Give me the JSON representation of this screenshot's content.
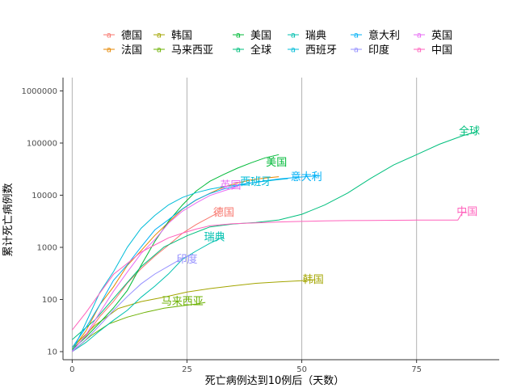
{
  "chart_data": {
    "type": "line",
    "title": "",
    "xlabel": "死亡病例达到10例后（天数）",
    "ylabel": "累计死亡病例数",
    "xlim": [
      -2,
      93
    ],
    "ylim": [
      7,
      1800000
    ],
    "yscale": "log",
    "xticks": [
      0,
      25,
      50,
      75
    ],
    "yticks": [
      10,
      100,
      1000,
      10000,
      100000,
      1000000
    ],
    "ytick_labels": [
      "10",
      "100",
      "1000",
      "10000",
      "100000",
      "1000000"
    ],
    "grid": "vertical-major",
    "legend_position": "top",
    "series": [
      {
        "name": "德国",
        "color": "#F8766D",
        "x": [
          0,
          3,
          6,
          9,
          12,
          15,
          18,
          21,
          24,
          27,
          30,
          32
        ],
        "y": [
          11,
          20,
          47,
          92,
          206,
          389,
          682,
          1107,
          1861,
          2736,
          3804,
          4700
        ]
      },
      {
        "name": "法国",
        "color": "#E58700",
        "x": [
          0,
          3,
          6,
          9,
          12,
          15,
          18,
          21,
          24,
          27,
          30,
          33,
          36,
          39,
          42,
          45
        ],
        "y": [
          11,
          25,
          79,
          175,
          450,
          860,
          1696,
          3024,
          5387,
          8078,
          10869,
          14393,
          17167,
          19718,
          21340,
          22614
        ]
      },
      {
        "name": "韩国",
        "color": "#A3A500",
        "x": [
          0,
          5,
          10,
          15,
          20,
          25,
          30,
          35,
          40,
          45,
          50,
          53
        ],
        "y": [
          12,
          32,
          67,
          91,
          111,
          139,
          162,
          183,
          204,
          217,
          230,
          240
        ]
      },
      {
        "name": "马来西亚",
        "color": "#6BB100",
        "x": [
          0,
          4,
          8,
          12,
          16,
          20,
          24,
          27,
          29
        ],
        "y": [
          10,
          20,
          34,
          46,
          57,
          68,
          76,
          82,
          88
        ]
      },
      {
        "name": "美国",
        "color": "#00BA38",
        "x": [
          0,
          3,
          6,
          9,
          12,
          15,
          18,
          21,
          24,
          27,
          30,
          33,
          36,
          39,
          42,
          45
        ],
        "y": [
          11,
          19,
          36,
          69,
          149,
          450,
          1300,
          3170,
          6500,
          12000,
          18500,
          25000,
          33000,
          42000,
          52000,
          60000
        ]
      },
      {
        "name": "全球",
        "color": "#00BF7D",
        "x": [
          0,
          5,
          10,
          15,
          20,
          25,
          30,
          35,
          40,
          45,
          50,
          55,
          60,
          65,
          70,
          75,
          80,
          85,
          88
        ],
        "y": [
          17,
          41,
          132,
          425,
          1018,
          1666,
          2464,
          2800,
          3000,
          3350,
          4300,
          6500,
          11000,
          21000,
          38000,
          60000,
          95000,
          138000,
          165000
        ]
      },
      {
        "name": "瑞典",
        "color": "#00C0AF",
        "x": [
          0,
          3,
          6,
          9,
          12,
          15,
          18,
          21,
          24,
          27,
          30,
          33
        ],
        "y": [
          10,
          15,
          25,
          40,
          62,
          110,
          180,
          310,
          590,
          850,
          1200,
          1600
        ]
      },
      {
        "name": "西班牙",
        "color": "#00BCD8",
        "x": [
          0,
          3,
          6,
          9,
          12,
          15,
          18,
          21,
          24,
          27,
          30,
          33,
          36,
          39,
          42,
          45,
          47
        ],
        "y": [
          10,
          36,
          136,
          342,
          1002,
          2311,
          4089,
          6528,
          9053,
          11198,
          13055,
          14555,
          15843,
          17209,
          18579,
          20002,
          20800
        ]
      },
      {
        "name": "意大利",
        "color": "#00B0F6",
        "x": [
          0,
          3,
          6,
          9,
          12,
          15,
          18,
          21,
          24,
          27,
          30,
          33,
          36,
          39,
          42,
          45,
          48,
          51,
          54
        ],
        "y": [
          12,
          29,
          79,
          233,
          463,
          1016,
          2158,
          3405,
          5476,
          8165,
          10779,
          13155,
          15362,
          17127,
          18849,
          20465,
          21645,
          22745,
          23600
        ]
      },
      {
        "name": "印度",
        "color": "#9590FF",
        "x": [
          0,
          3,
          6,
          9,
          12,
          15,
          18,
          21,
          24,
          26
        ],
        "y": [
          10,
          17,
          32,
          62,
          114,
          199,
          308,
          437,
          620,
          720
        ]
      },
      {
        "name": "英国",
        "color": "#E76BF3",
        "x": [
          0,
          3,
          6,
          9,
          12,
          15,
          18,
          21,
          24,
          27,
          30,
          33,
          36
        ],
        "y": [
          10,
          21,
          56,
          144,
          335,
          759,
          1408,
          2921,
          4934,
          7097,
          9875,
          12107,
          14576
        ]
      },
      {
        "name": "中国",
        "color": "#FF62BC",
        "x": [
          0,
          3,
          6,
          9,
          12,
          15,
          18,
          21,
          24,
          27,
          30,
          35,
          40,
          45,
          50,
          55,
          60,
          65,
          70,
          75,
          80,
          84,
          85,
          86
        ],
        "y": [
          26,
          56,
          132,
          304,
          492,
          811,
          1113,
          1523,
          1868,
          2237,
          2592,
          2838,
          2945,
          3062,
          3144,
          3226,
          3260,
          3281,
          3309,
          3326,
          3336,
          3339,
          4632,
          4635
        ]
      }
    ],
    "labels": [
      {
        "text": "德国",
        "series": 0,
        "x": 33,
        "y": 4800
      },
      {
        "text": "韩国",
        "series": 2,
        "x": 52.5,
        "y": 250
      },
      {
        "text": "马来西亚",
        "series": 3,
        "x": 24,
        "y": 95
      },
      {
        "text": "美国",
        "series": 4,
        "x": 44.5,
        "y": 44000
      },
      {
        "text": "全球",
        "series": 5,
        "x": 86.5,
        "y": 175000
      },
      {
        "text": "瑞典",
        "series": 6,
        "x": 31,
        "y": 1620
      },
      {
        "text": "西班牙",
        "series": 7,
        "x": 40,
        "y": 18500
      },
      {
        "text": "意大利",
        "series": 8,
        "x": 51,
        "y": 23000
      },
      {
        "text": "印度",
        "series": 9,
        "x": 25,
        "y": 610
      },
      {
        "text": "英国",
        "series": 10,
        "x": 34.5,
        "y": 16000
      },
      {
        "text": "中国",
        "series": 11,
        "x": 86,
        "y": 5000
      }
    ]
  }
}
